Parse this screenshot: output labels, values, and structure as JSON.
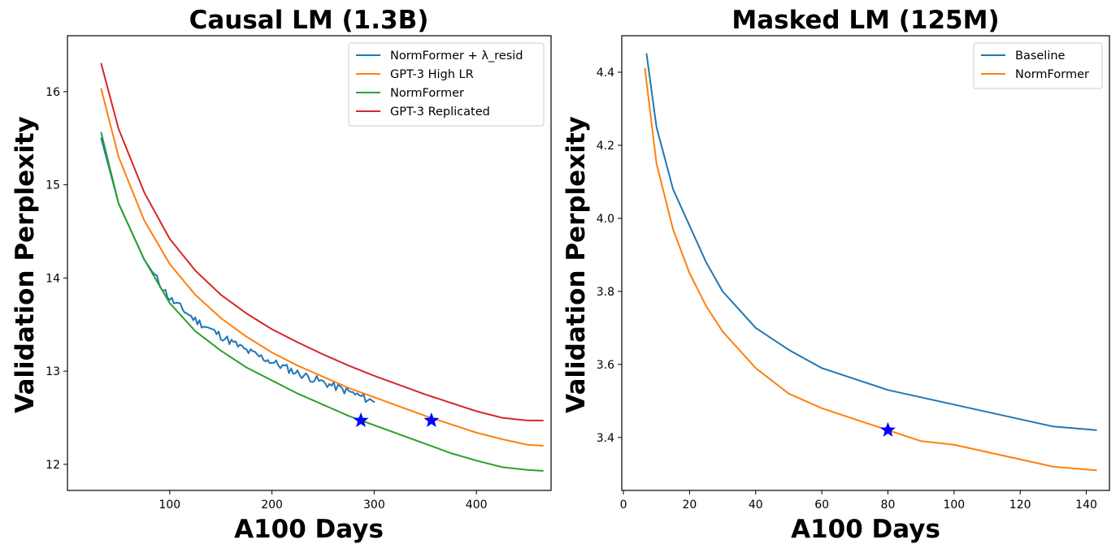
{
  "chart_data": [
    {
      "type": "line",
      "title": "Causal LM (1.3B)",
      "xlabel": "A100 Days",
      "ylabel": "Validation Perplexity",
      "xlim": [
        0,
        473
      ],
      "ylim": [
        11.72,
        16.6
      ],
      "xticks": [
        100,
        200,
        300,
        400
      ],
      "yticks": [
        12,
        13,
        14,
        15,
        16
      ],
      "legend_position": "top-right",
      "series": [
        {
          "name": "NormFormer + λ_resid",
          "color": "#1f77b4",
          "noisy": true,
          "x": [
            33,
            50,
            75,
            100,
            125,
            150,
            175,
            200,
            225,
            250,
            275,
            300
          ],
          "y": [
            15.5,
            14.8,
            14.2,
            13.78,
            13.55,
            13.38,
            13.22,
            13.1,
            12.98,
            12.88,
            12.78,
            12.67
          ]
        },
        {
          "name": "GPT-3 High LR",
          "color": "#ff7f0e",
          "noisy": false,
          "x": [
            33,
            50,
            75,
            100,
            125,
            150,
            175,
            200,
            225,
            250,
            275,
            300,
            325,
            350,
            375,
            400,
            425,
            450,
            465
          ],
          "y": [
            16.03,
            15.3,
            14.62,
            14.15,
            13.82,
            13.57,
            13.37,
            13.2,
            13.06,
            12.94,
            12.82,
            12.72,
            12.62,
            12.52,
            12.43,
            12.34,
            12.27,
            12.21,
            12.2
          ]
        },
        {
          "name": "NormFormer",
          "color": "#2ca02c",
          "noisy": false,
          "x": [
            33,
            50,
            75,
            100,
            125,
            150,
            175,
            200,
            225,
            250,
            275,
            300,
            325,
            350,
            375,
            400,
            425,
            450,
            465
          ],
          "y": [
            15.56,
            14.8,
            14.2,
            13.73,
            13.43,
            13.22,
            13.04,
            12.9,
            12.76,
            12.64,
            12.52,
            12.42,
            12.32,
            12.22,
            12.12,
            12.04,
            11.97,
            11.94,
            11.93
          ]
        },
        {
          "name": "GPT-3 Replicated",
          "color": "#d62728",
          "noisy": false,
          "x": [
            33,
            50,
            75,
            100,
            125,
            150,
            175,
            200,
            225,
            250,
            275,
            300,
            325,
            350,
            375,
            400,
            425,
            450,
            465
          ],
          "y": [
            16.3,
            15.6,
            14.92,
            14.42,
            14.08,
            13.82,
            13.62,
            13.45,
            13.31,
            13.18,
            13.06,
            12.95,
            12.85,
            12.75,
            12.66,
            12.57,
            12.5,
            12.47,
            12.47
          ]
        }
      ],
      "markers": [
        {
          "label": "star",
          "x": 287,
          "y": 12.47,
          "color": "#0000ff"
        },
        {
          "label": "star",
          "x": 356,
          "y": 12.47,
          "color": "#0000ff"
        }
      ]
    },
    {
      "type": "line",
      "title": "Masked LM (125M)",
      "xlabel": "A100 Days",
      "ylabel": "Validation Perplexity",
      "xlim": [
        -0.5,
        147
      ],
      "ylim": [
        3.255,
        4.5
      ],
      "xticks": [
        0,
        20,
        40,
        60,
        80,
        100,
        120,
        140
      ],
      "yticks": [
        3.4,
        3.6,
        3.8,
        4.0,
        4.2,
        4.4
      ],
      "legend_position": "top-right",
      "series": [
        {
          "name": "Baseline",
          "color": "#1f77b4",
          "noisy": false,
          "x": [
            7,
            10,
            15,
            20,
            25,
            30,
            40,
            50,
            60,
            70,
            80,
            90,
            100,
            110,
            120,
            130,
            143
          ],
          "y": [
            4.45,
            4.25,
            4.08,
            3.98,
            3.88,
            3.8,
            3.7,
            3.64,
            3.59,
            3.56,
            3.53,
            3.51,
            3.49,
            3.47,
            3.45,
            3.43,
            3.42
          ]
        },
        {
          "name": "NormFormer",
          "color": "#ff7f0e",
          "noisy": false,
          "x": [
            6.5,
            10,
            15,
            20,
            25,
            30,
            40,
            50,
            60,
            70,
            80,
            90,
            100,
            110,
            120,
            130,
            143
          ],
          "y": [
            4.41,
            4.15,
            3.97,
            3.85,
            3.76,
            3.69,
            3.59,
            3.52,
            3.48,
            3.45,
            3.42,
            3.39,
            3.38,
            3.36,
            3.34,
            3.32,
            3.31
          ]
        }
      ],
      "markers": [
        {
          "label": "star",
          "x": 80,
          "y": 3.42,
          "color": "#0000ff"
        }
      ]
    }
  ]
}
